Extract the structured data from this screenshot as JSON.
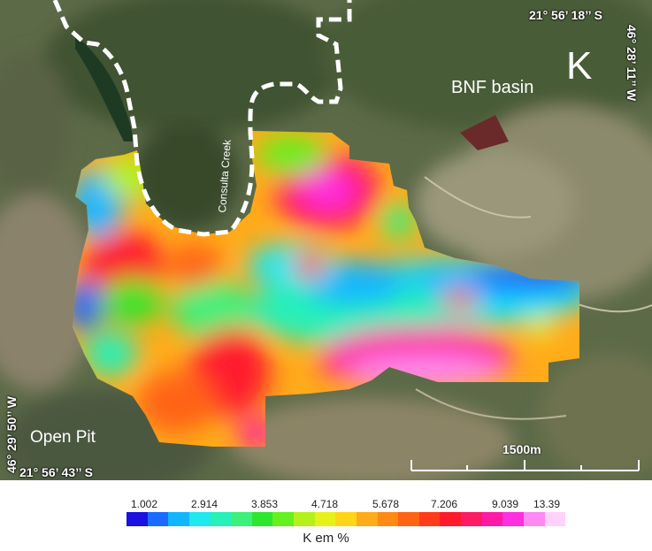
{
  "map": {
    "panel_letter": "K",
    "basin_label": "BNF basin",
    "creek_label": "Consulta Creek",
    "pit_label": "Open Pit",
    "coords": {
      "top_right": "21° 56’ 18’’ S",
      "right_edge": "46° 28’ 11’’ W",
      "left_edge": "46° 29’ 50’’ W",
      "bottom_left": "21° 56’ 43’’ S"
    },
    "scale_bar_label": "1500m"
  },
  "legend": {
    "title": "K em %",
    "tick_labels": [
      "1.002",
      "2.914",
      "3.853",
      "4.718",
      "5.678",
      "7.206",
      "9.039",
      "13.39"
    ],
    "colors": [
      "#1a10e0",
      "#1a6bff",
      "#12b6ff",
      "#1ee8f0",
      "#27f0b8",
      "#3cf07a",
      "#2ee62e",
      "#66f01e",
      "#b4f01a",
      "#e8f01a",
      "#ffd51a",
      "#ffab1a",
      "#ff8a14",
      "#ff6414",
      "#ff3c1a",
      "#ff1a2e",
      "#ff1a64",
      "#ff1aa6",
      "#ff2ee0",
      "#ff8af2",
      "#ffd2fa"
    ]
  }
}
